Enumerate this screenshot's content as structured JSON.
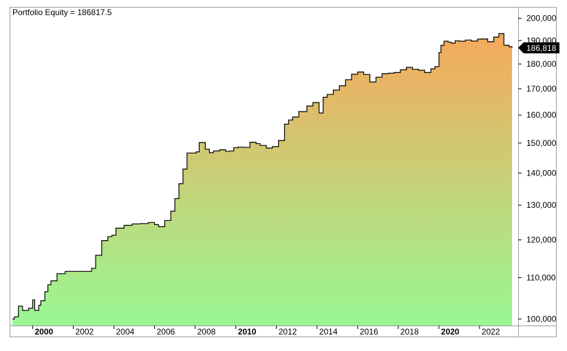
{
  "chart_data": {
    "type": "area",
    "title": "Portfolio Equity = 186817.5",
    "xlabel": "",
    "ylabel": "",
    "x_range": [
      1998.9,
      2023.9
    ],
    "y_range": [
      98500,
      205000
    ],
    "y_scale": "log",
    "grid": false,
    "y_axis_side": "right",
    "last_value_label": "186,818",
    "last_value_badge_color": "#000000",
    "fill_gradient_top": "#f6a85c",
    "fill_gradient_bottom": "#98f893",
    "line_color": "#000000",
    "x_ticks": [
      {
        "value": 2000,
        "label": "2000",
        "bold": true
      },
      {
        "value": 2002,
        "label": "2002",
        "bold": false
      },
      {
        "value": 2004,
        "label": "2004",
        "bold": false
      },
      {
        "value": 2006,
        "label": "2006",
        "bold": false
      },
      {
        "value": 2008,
        "label": "2008",
        "bold": false
      },
      {
        "value": 2010,
        "label": "2010",
        "bold": true
      },
      {
        "value": 2012,
        "label": "2012",
        "bold": false
      },
      {
        "value": 2014,
        "label": "2014",
        "bold": false
      },
      {
        "value": 2016,
        "label": "2016",
        "bold": false
      },
      {
        "value": 2018,
        "label": "2018",
        "bold": false
      },
      {
        "value": 2020,
        "label": "2020",
        "bold": true
      },
      {
        "value": 2022,
        "label": "2022",
        "bold": false
      }
    ],
    "y_ticks": [
      {
        "value": 100000,
        "label": "100,000"
      },
      {
        "value": 110000,
        "label": "110,000"
      },
      {
        "value": 120000,
        "label": "120,000"
      },
      {
        "value": 130000,
        "label": "130,000"
      },
      {
        "value": 140000,
        "label": "140,000"
      },
      {
        "value": 150000,
        "label": "150,000"
      },
      {
        "value": 160000,
        "label": "160,000"
      },
      {
        "value": 170000,
        "label": "170,000"
      },
      {
        "value": 180000,
        "label": "180,000"
      },
      {
        "value": 190000,
        "label": "190,000"
      },
      {
        "value": 200000,
        "label": "200,000"
      }
    ],
    "series": [
      {
        "x": [
          1999.0,
          1999.1,
          1999.3,
          1999.5,
          1999.8,
          2000.0,
          2000.1,
          2000.3,
          2000.4,
          2000.6,
          2000.75,
          2000.9,
          2001.2,
          2001.6,
          2002.0,
          2002.4,
          2002.9,
          2003.1,
          2003.4,
          2003.7,
          2003.9,
          2004.1,
          2004.5,
          2004.9,
          2005.3,
          2005.7,
          2006.0,
          2006.2,
          2006.5,
          2006.8,
          2007.0,
          2007.2,
          2007.4,
          2007.6,
          2007.9,
          2008.05,
          2008.2,
          2008.5,
          2008.7,
          2008.9,
          2009.2,
          2009.5,
          2009.7,
          2009.9,
          2010.1,
          2010.4,
          2010.7,
          2011.0,
          2011.2,
          2011.5,
          2011.8,
          2012.1,
          2012.4,
          2012.6,
          2012.8,
          2013.1,
          2013.5,
          2013.8,
          2014.1,
          2014.3,
          2014.5,
          2014.8,
          2015.1,
          2015.4,
          2015.7,
          2016.0,
          2016.3,
          2016.6,
          2016.9,
          2017.2,
          2017.5,
          2017.8,
          2018.1,
          2018.4,
          2018.7,
          2019.0,
          2019.3,
          2019.6,
          2019.8,
          2020.0,
          2020.1,
          2020.25,
          2020.45,
          2020.6,
          2020.8,
          2021.0,
          2021.3,
          2021.6,
          2021.9,
          2022.1,
          2022.4,
          2022.7,
          2022.95,
          2023.2,
          2023.45,
          2023.6
        ],
        "values": [
          100000,
          100500,
          103000,
          102000,
          102500,
          104500,
          102000,
          103200,
          104300,
          106500,
          108200,
          109200,
          111000,
          111600,
          111600,
          111600,
          112400,
          115800,
          119800,
          120900,
          121300,
          123300,
          124100,
          124500,
          124600,
          124900,
          124300,
          123700,
          125500,
          128200,
          132000,
          136600,
          141300,
          146600,
          146600,
          147000,
          150200,
          147900,
          146700,
          147300,
          147700,
          147200,
          147300,
          148400,
          148600,
          148500,
          150300,
          149800,
          149200,
          148300,
          148800,
          150900,
          156700,
          158200,
          159300,
          161300,
          163400,
          164700,
          160800,
          166700,
          167800,
          169500,
          171200,
          173600,
          175800,
          176700,
          175700,
          172700,
          174600,
          176000,
          176200,
          176500,
          177600,
          178600,
          177800,
          177400,
          176500,
          178000,
          178900,
          184800,
          187900,
          189700,
          189300,
          188900,
          189900,
          189700,
          190200,
          189800,
          190600,
          190700,
          189500,
          191500,
          193100,
          188000,
          187300,
          186817.5
        ]
      }
    ]
  }
}
